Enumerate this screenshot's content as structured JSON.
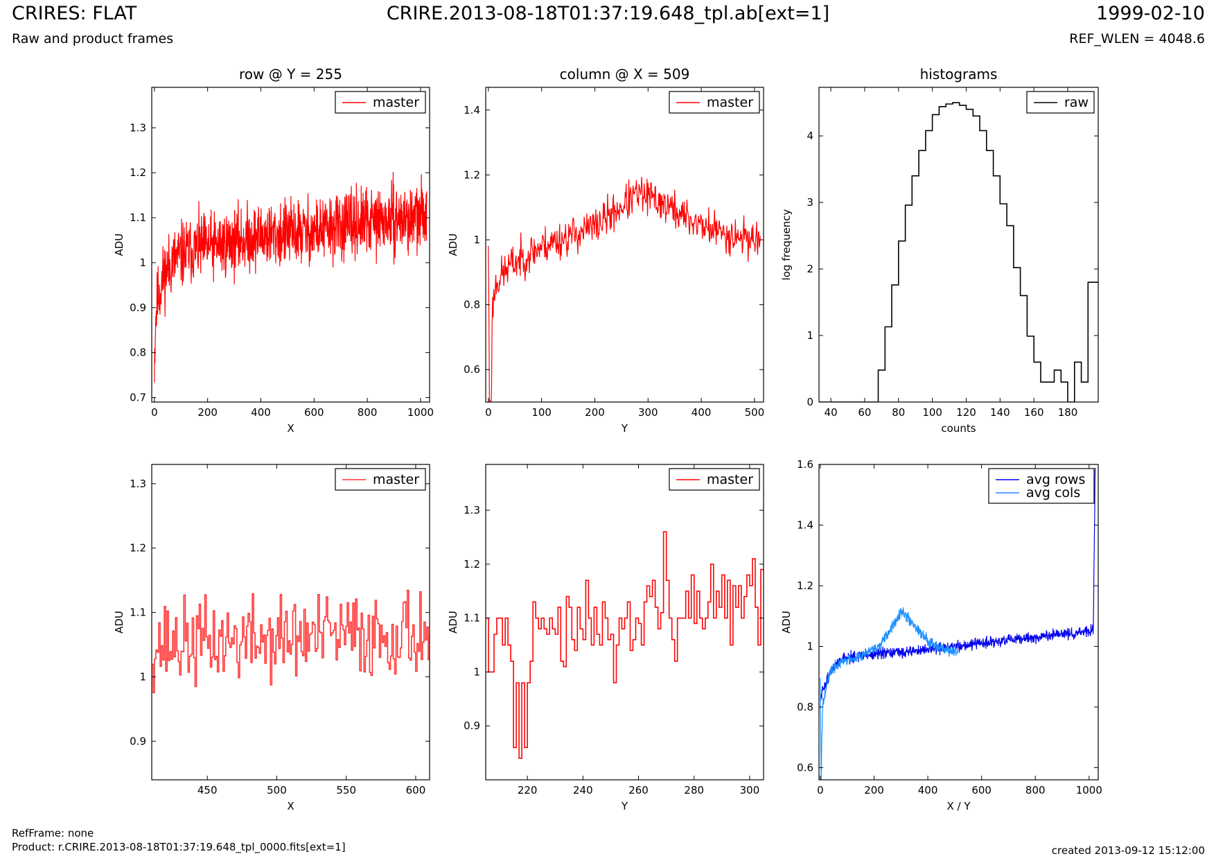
{
  "header": {
    "left_title": "CRIRES: FLAT",
    "center_title": "CRIRE.2013-08-18T01:37:19.648_tpl.ab[ext=1]",
    "right_title": "1999-02-10",
    "left_subtitle": "Raw and product frames",
    "right_subtitle": "REF_WLEN = 4048.6"
  },
  "footer": {
    "refframe": "RefFrame: none",
    "product": "Product: r.CRIRE.2013-08-18T01:37:19.648_tpl_0000.fits[ext=1]",
    "created": "created 2013-09-12 15:12:00"
  },
  "chart_data": [
    {
      "id": "row-full",
      "type": "line",
      "title": "row @ Y = 255",
      "xlabel": "X",
      "ylabel": "ADU",
      "xlim": [
        -10,
        1034
      ],
      "ylim": [
        0.69,
        1.39
      ],
      "xticks": [
        0,
        200,
        400,
        600,
        800,
        1000
      ],
      "yticks": [
        0.7,
        0.8,
        0.9,
        1.0,
        1.1,
        1.2,
        1.3
      ],
      "legend": "top-right",
      "series": [
        {
          "name": "master",
          "color": "#ff0000",
          "style": "line",
          "noise": true,
          "n": 1024,
          "x": [
            0,
            5,
            15,
            40,
            80,
            150,
            250,
            400,
            600,
            800,
            1000,
            1023
          ],
          "y": [
            0.78,
            0.88,
            0.93,
            0.98,
            1.01,
            1.03,
            1.04,
            1.06,
            1.07,
            1.09,
            1.1,
            1.12
          ],
          "amp": 0.1,
          "seed": 11
        }
      ]
    },
    {
      "id": "col-full",
      "type": "line",
      "title": "column @ X = 509",
      "xlabel": "Y",
      "ylabel": "ADU",
      "xlim": [
        -5,
        517
      ],
      "ylim": [
        0.5,
        1.47
      ],
      "xticks": [
        0,
        100,
        200,
        300,
        400,
        500
      ],
      "yticks": [
        0.6,
        0.8,
        1.0,
        1.2,
        1.4
      ],
      "legend": "top-right",
      "series": [
        {
          "name": "master",
          "color": "#ff0000",
          "style": "line",
          "noise": true,
          "n": 512,
          "x": [
            0,
            2,
            5,
            8,
            15,
            40,
            100,
            200,
            280,
            320,
            380,
            440,
            511
          ],
          "y": [
            1.0,
            0.5,
            0.5,
            0.8,
            0.87,
            0.92,
            0.98,
            1.04,
            1.14,
            1.12,
            1.06,
            1.02,
            1.0
          ],
          "amp": 0.08,
          "seed": 23
        }
      ]
    },
    {
      "id": "histogram",
      "type": "line",
      "title": "histograms",
      "xlabel": "counts",
      "ylabel": "log frequency",
      "xlim": [
        33,
        198
      ],
      "ylim": [
        0,
        4.73
      ],
      "xticks": [
        40,
        60,
        80,
        100,
        120,
        140,
        160,
        180
      ],
      "yticks": [
        0,
        1,
        2,
        3,
        4
      ],
      "legend": "top-right",
      "series": [
        {
          "name": "raw",
          "color": "#000000",
          "style": "step",
          "x": [
            33,
            68,
            72,
            76,
            80,
            84,
            88,
            92,
            96,
            100,
            104,
            108,
            112,
            116,
            120,
            124,
            128,
            132,
            136,
            140,
            144,
            148,
            152,
            156,
            160,
            164,
            168,
            172,
            176,
            180,
            184,
            188,
            192,
            196
          ],
          "y": [
            0,
            0.48,
            1.13,
            1.76,
            2.42,
            2.96,
            3.4,
            3.78,
            4.08,
            4.32,
            4.44,
            4.48,
            4.5,
            4.46,
            4.4,
            4.3,
            4.08,
            3.78,
            3.4,
            2.98,
            2.65,
            2.02,
            1.6,
            0.99,
            0.6,
            0.3,
            0.3,
            0.48,
            0.3,
            0,
            0.6,
            0.3,
            1.8,
            1.8
          ]
        }
      ]
    },
    {
      "id": "row-zoom",
      "type": "line",
      "title": "",
      "xlabel": "X",
      "ylabel": "ADU",
      "xlim": [
        410,
        610
      ],
      "ylim": [
        0.84,
        1.33
      ],
      "xticks": [
        450,
        500,
        550,
        600
      ],
      "yticks": [
        0.9,
        1.0,
        1.1,
        1.2,
        1.3
      ],
      "legend": "top-right",
      "series": [
        {
          "name": "master",
          "color": "#ff3333",
          "style": "step",
          "noise": true,
          "n": 200,
          "x": [
            410,
            610
          ],
          "y": [
            1.05,
            1.07
          ],
          "amp": 0.09,
          "seed": 37
        }
      ]
    },
    {
      "id": "col-zoom",
      "type": "line",
      "title": "",
      "xlabel": "Y",
      "ylabel": "ADU",
      "xlim": [
        205,
        305
      ],
      "ylim": [
        0.8,
        1.385
      ],
      "xticks": [
        220,
        240,
        260,
        280,
        300
      ],
      "yticks": [
        0.9,
        1.0,
        1.1,
        1.2,
        1.3
      ],
      "legend": "top-right",
      "series": [
        {
          "name": "master",
          "color": "#ff0000",
          "style": "step",
          "x": [
            205,
            206,
            207,
            208,
            209,
            210,
            211,
            212,
            213,
            214,
            215,
            216,
            217,
            218,
            219,
            220,
            221,
            222,
            223,
            224,
            225,
            226,
            227,
            228,
            229,
            230,
            231,
            232,
            233,
            234,
            235,
            236,
            237,
            238,
            239,
            240,
            241,
            242,
            243,
            244,
            245,
            246,
            247,
            248,
            249,
            250,
            251,
            252,
            253,
            254,
            255,
            256,
            257,
            258,
            259,
            260,
            261,
            262,
            263,
            264,
            265,
            266,
            267,
            268,
            269,
            270,
            271,
            272,
            273,
            274,
            275,
            276,
            277,
            278,
            279,
            280,
            281,
            282,
            283,
            284,
            285,
            286,
            287,
            288,
            289,
            290,
            291,
            292,
            293,
            294,
            295,
            296,
            297,
            298,
            299,
            300,
            301,
            302,
            303,
            304
          ],
          "y": [
            1.1,
            1.0,
            1.0,
            1.07,
            1.1,
            1.1,
            1.05,
            1.1,
            1.05,
            1.02,
            0.86,
            0.98,
            0.84,
            0.98,
            0.86,
            0.98,
            1.02,
            1.13,
            1.1,
            1.08,
            1.1,
            1.08,
            1.07,
            1.1,
            1.08,
            1.07,
            1.12,
            1.02,
            1.01,
            1.14,
            1.12,
            1.06,
            1.04,
            1.12,
            1.08,
            1.06,
            1.17,
            1.1,
            1.05,
            1.12,
            1.07,
            1.05,
            1.13,
            1.1,
            1.06,
            1.07,
            0.98,
            1.05,
            1.1,
            1.08,
            1.1,
            1.13,
            1.04,
            1.06,
            1.1,
            1.09,
            1.05,
            1.13,
            1.16,
            1.14,
            1.17,
            1.12,
            1.08,
            1.11,
            1.26,
            1.17,
            1.1,
            1.06,
            1.02,
            1.1,
            1.1,
            1.1,
            1.15,
            1.1,
            1.18,
            1.09,
            1.15,
            1.1,
            1.08,
            1.1,
            1.13,
            1.2,
            1.1,
            1.15,
            1.12,
            1.18,
            1.1,
            1.17,
            1.05,
            1.16,
            1.12,
            1.16,
            1.1,
            1.14,
            1.18,
            1.16,
            1.21,
            1.12,
            1.05,
            1.19
          ]
        }
      ]
    },
    {
      "id": "avg",
      "type": "line",
      "title": "",
      "xlabel": "X / Y",
      "ylabel": "ADU",
      "xlim": [
        -5,
        1034
      ],
      "ylim": [
        0.56,
        1.6
      ],
      "xticks": [
        0,
        200,
        400,
        600,
        800,
        1000
      ],
      "yticks": [
        0.6,
        0.8,
        1.0,
        1.2,
        1.4,
        1.6
      ],
      "legend": "top-right",
      "series": [
        {
          "name": "avg rows",
          "color": "#0000ee",
          "style": "line",
          "noise": true,
          "n": 1024,
          "x": [
            0,
            10,
            40,
            80,
            150,
            300,
            500,
            700,
            900,
            1010,
            1015,
            1016,
            1020,
            1023
          ],
          "y": [
            0.82,
            0.86,
            0.92,
            0.96,
            0.97,
            0.98,
            1.0,
            1.02,
            1.04,
            1.05,
            1.05,
            1.05,
            1.4,
            1.6
          ],
          "amp": 0.025,
          "seed": 51
        },
        {
          "name": "avg cols",
          "color": "#1e90ff",
          "style": "line",
          "noise": true,
          "n": 512,
          "x": [
            0,
            3,
            6,
            10,
            20,
            40,
            80,
            150,
            220,
            260,
            300,
            340,
            400,
            460,
            511
          ],
          "y": [
            0.9,
            0.56,
            0.72,
            0.82,
            0.86,
            0.92,
            0.95,
            0.97,
            1.0,
            1.05,
            1.12,
            1.08,
            1.02,
            0.99,
            0.98
          ],
          "amp": 0.025,
          "seed": 67
        }
      ]
    }
  ]
}
